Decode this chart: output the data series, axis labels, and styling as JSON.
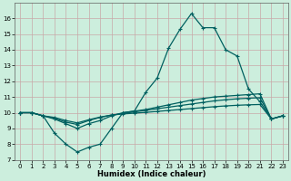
{
  "x_values": [
    0,
    1,
    2,
    3,
    4,
    5,
    6,
    7,
    8,
    9,
    10,
    11,
    12,
    13,
    14,
    15,
    16,
    17,
    18,
    19,
    20,
    21,
    22,
    23
  ],
  "line_main": [
    10.0,
    10.0,
    9.8,
    8.7,
    8.0,
    7.5,
    7.8,
    8.0,
    9.0,
    10.0,
    10.1,
    11.3,
    12.2,
    14.1,
    15.3,
    16.3,
    15.4,
    15.4,
    14.0,
    13.6,
    11.5,
    10.7,
    9.6,
    9.8
  ],
  "line2": [
    10.0,
    10.0,
    9.8,
    9.6,
    9.3,
    9.0,
    9.3,
    9.5,
    9.8,
    10.0,
    10.1,
    10.2,
    10.35,
    10.5,
    10.65,
    10.8,
    10.9,
    11.0,
    11.05,
    11.1,
    11.15,
    11.2,
    9.6,
    9.8
  ],
  "line3": [
    10.0,
    10.0,
    9.8,
    9.65,
    9.4,
    9.25,
    9.5,
    9.7,
    9.85,
    9.95,
    10.05,
    10.15,
    10.25,
    10.35,
    10.45,
    10.55,
    10.65,
    10.75,
    10.82,
    10.88,
    10.92,
    10.95,
    9.6,
    9.8
  ],
  "line4": [
    10.0,
    10.0,
    9.8,
    9.7,
    9.5,
    9.35,
    9.55,
    9.72,
    9.85,
    9.92,
    9.97,
    10.02,
    10.08,
    10.14,
    10.2,
    10.26,
    10.32,
    10.38,
    10.43,
    10.47,
    10.5,
    10.52,
    9.6,
    9.8
  ],
  "line_color": "#006060",
  "bg_color": "#cceedd",
  "grid_major_color": "#b0c8c0",
  "grid_minor_color": "#dde8e4",
  "xlabel": "Humidex (Indice chaleur)",
  "ylim": [
    7,
    17
  ],
  "xlim": [
    -0.5,
    23.5
  ],
  "yticks": [
    7,
    8,
    9,
    10,
    11,
    12,
    13,
    14,
    15,
    16
  ],
  "xticks": [
    0,
    1,
    2,
    3,
    4,
    5,
    6,
    7,
    8,
    9,
    10,
    11,
    12,
    13,
    14,
    15,
    16,
    17,
    18,
    19,
    20,
    21,
    22,
    23
  ]
}
